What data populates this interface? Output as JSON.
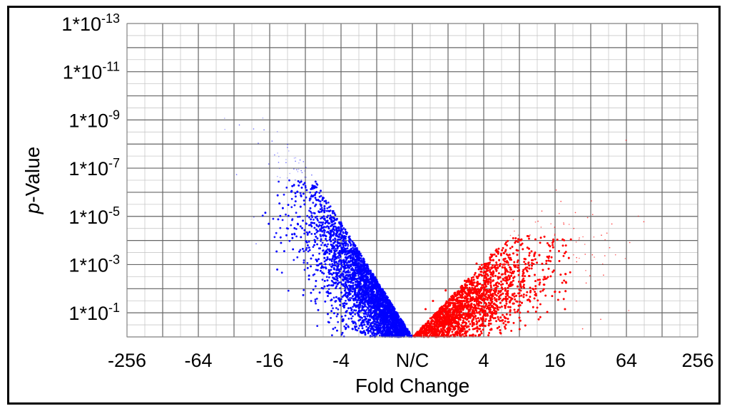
{
  "chart_data": {
    "type": "scatter",
    "title": "",
    "xlabel": "Fold Change",
    "ylabel_italic": "p",
    "ylabel_rest": "-Value",
    "x_ticks": [
      "-256",
      "-64",
      "-16",
      "-4",
      "N/C",
      "4",
      "16",
      "64",
      "256"
    ],
    "y_ticks": [
      {
        "base": "1*10",
        "exp": "-13"
      },
      {
        "base": "1*10",
        "exp": "-11"
      },
      {
        "base": "1*10",
        "exp": "-9"
      },
      {
        "base": "1*10",
        "exp": "-7"
      },
      {
        "base": "1*10",
        "exp": "-5"
      },
      {
        "base": "1*10",
        "exp": "-3"
      },
      {
        "base": "1*10",
        "exp": "-1"
      }
    ],
    "x_scale": "log2 fold change",
    "y_scale": "-log10 p-value",
    "xlim_log2": [
      -8,
      8
    ],
    "ylim_neglog10p": [
      0,
      13
    ],
    "grid": true,
    "series": [
      {
        "color": "#0000ff",
        "direction": "down",
        "description_points_log2fc_neglog10p": [
          [
            0,
            0
          ],
          [
            -1,
            2
          ],
          [
            -2,
            4
          ],
          [
            -3,
            6
          ],
          [
            -3.5,
            7
          ],
          [
            -4,
            8.5
          ]
        ]
      },
      {
        "color": "#ff0000",
        "direction": "up",
        "description_points_log2fc_neglog10p": [
          [
            0,
            0
          ],
          [
            1,
            1.5
          ],
          [
            2,
            3
          ],
          [
            3,
            4.5
          ],
          [
            4,
            5
          ],
          [
            5,
            5.5
          ]
        ]
      }
    ]
  }
}
